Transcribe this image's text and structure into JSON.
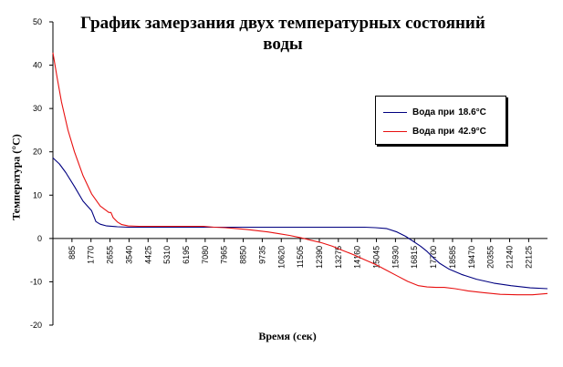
{
  "chart_data": {
    "type": "line",
    "title": "График замерзания двух температурных состояний воды",
    "xlabel": "Время (сек)",
    "ylabel": "Температура (°С)",
    "ylim": [
      -20,
      50
    ],
    "yticks": [
      -20,
      -10,
      0,
      10,
      20,
      30,
      40,
      50
    ],
    "xlim": [
      0,
      23000
    ],
    "x_ticks": [
      885,
      1770,
      2655,
      3540,
      4425,
      5310,
      6195,
      7080,
      7965,
      8850,
      9735,
      10620,
      11505,
      12390,
      13275,
      14160,
      15045,
      15930,
      16815,
      17700,
      18585,
      19470,
      20355,
      21240,
      22125
    ],
    "x_tick_labels": [
      "885",
      "1770",
      "2655",
      "3540",
      "4425",
      "5310",
      "6195",
      "7080",
      "7965",
      "8850",
      "9735",
      "10620",
      "11505",
      "12390",
      "13275",
      "14160",
      "15045",
      "15930",
      "16815",
      "17700",
      "18585",
      "19470",
      "20355",
      "21240",
      "22125"
    ],
    "grid": false,
    "legend_position": "right",
    "series": [
      {
        "name": "Вода при",
        "value_label": "18.6°C",
        "color": "#000080",
        "x": [
          0,
          300,
          600,
          1000,
          1400,
          1800,
          2000,
          2200,
          2500,
          3000,
          3500,
          4000,
          5000,
          6000,
          7000,
          8000,
          9000,
          10000,
          11000,
          12000,
          13000,
          14000,
          14500,
          15000,
          15500,
          16000,
          16400,
          16800,
          17100,
          17400,
          17700,
          18000,
          18400,
          19000,
          19700,
          20500,
          21300,
          22200,
          23000
        ],
        "y": [
          18.6,
          17.2,
          15.2,
          12.0,
          8.6,
          6.4,
          3.9,
          3.3,
          2.9,
          2.7,
          2.6,
          2.6,
          2.6,
          2.6,
          2.6,
          2.6,
          2.6,
          2.6,
          2.6,
          2.6,
          2.6,
          2.6,
          2.6,
          2.5,
          2.3,
          1.5,
          0.5,
          -0.8,
          -1.8,
          -3.0,
          -4.5,
          -5.8,
          -7.0,
          -8.3,
          -9.4,
          -10.3,
          -10.9,
          -11.4,
          -11.6
        ]
      },
      {
        "name": "Вода при",
        "value_label": "42.9°C",
        "color": "#e81010",
        "x": [
          0,
          200,
          400,
          700,
          1000,
          1400,
          1800,
          2200,
          2600,
          2700,
          2800,
          3000,
          3200,
          3500,
          4000,
          5000,
          6000,
          7000,
          7500,
          8000,
          8500,
          9000,
          9500,
          10000,
          10500,
          11000,
          11500,
          12000,
          12500,
          13000,
          13500,
          14000,
          14500,
          15000,
          15500,
          16000,
          16500,
          17000,
          17400,
          17800,
          18200,
          18700,
          19300,
          20000,
          20800,
          21600,
          22300,
          23000
        ],
        "y": [
          42.9,
          37.0,
          31.5,
          25.0,
          20.0,
          14.5,
          10.3,
          7.5,
          6.0,
          6.0,
          4.8,
          3.8,
          3.2,
          2.9,
          2.8,
          2.8,
          2.8,
          2.8,
          2.6,
          2.5,
          2.3,
          2.1,
          1.8,
          1.5,
          1.1,
          0.7,
          0.2,
          -0.4,
          -1.0,
          -1.8,
          -2.8,
          -3.8,
          -4.9,
          -6.0,
          -7.3,
          -8.6,
          -9.9,
          -10.9,
          -11.2,
          -11.3,
          -11.3,
          -11.6,
          -12.1,
          -12.5,
          -12.9,
          -13.0,
          -13.0,
          -12.7
        ]
      }
    ]
  }
}
